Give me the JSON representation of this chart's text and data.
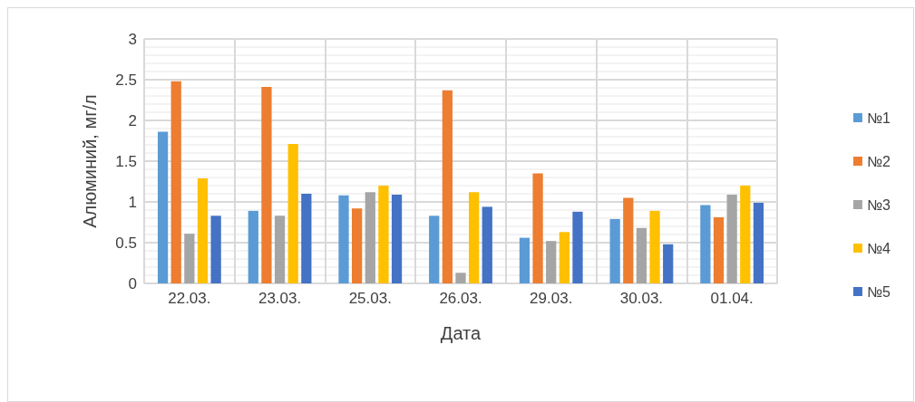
{
  "chart_data": {
    "type": "bar",
    "xlabel": "Дата",
    "ylabel": "Алюминий, мг/л",
    "categories": [
      "22.03.",
      "23.03.",
      "25.03.",
      "26.03.",
      "29.03.",
      "30.03.",
      "01.04."
    ],
    "series": [
      {
        "name": "№1",
        "color": "#5b9bd5",
        "values": [
          1.86,
          0.89,
          1.08,
          0.83,
          0.56,
          0.79,
          0.96
        ]
      },
      {
        "name": "№2",
        "color": "#ed7d31",
        "values": [
          2.48,
          2.41,
          0.92,
          2.37,
          1.35,
          1.05,
          0.81
        ]
      },
      {
        "name": "№3",
        "color": "#a5a5a5",
        "values": [
          0.61,
          0.83,
          1.12,
          0.13,
          0.52,
          0.68,
          1.09
        ]
      },
      {
        "name": "№4",
        "color": "#ffc000",
        "values": [
          1.29,
          1.71,
          1.2,
          1.12,
          0.63,
          0.89,
          1.2
        ]
      },
      {
        "name": "№5",
        "color": "#4472c4",
        "values": [
          0.83,
          1.1,
          1.09,
          0.94,
          0.88,
          0.48,
          0.99
        ]
      }
    ],
    "ylim": [
      0,
      3
    ],
    "yticks": [
      0,
      0.5,
      1,
      1.5,
      2,
      2.5,
      3
    ],
    "grid": true,
    "legend": "right"
  }
}
